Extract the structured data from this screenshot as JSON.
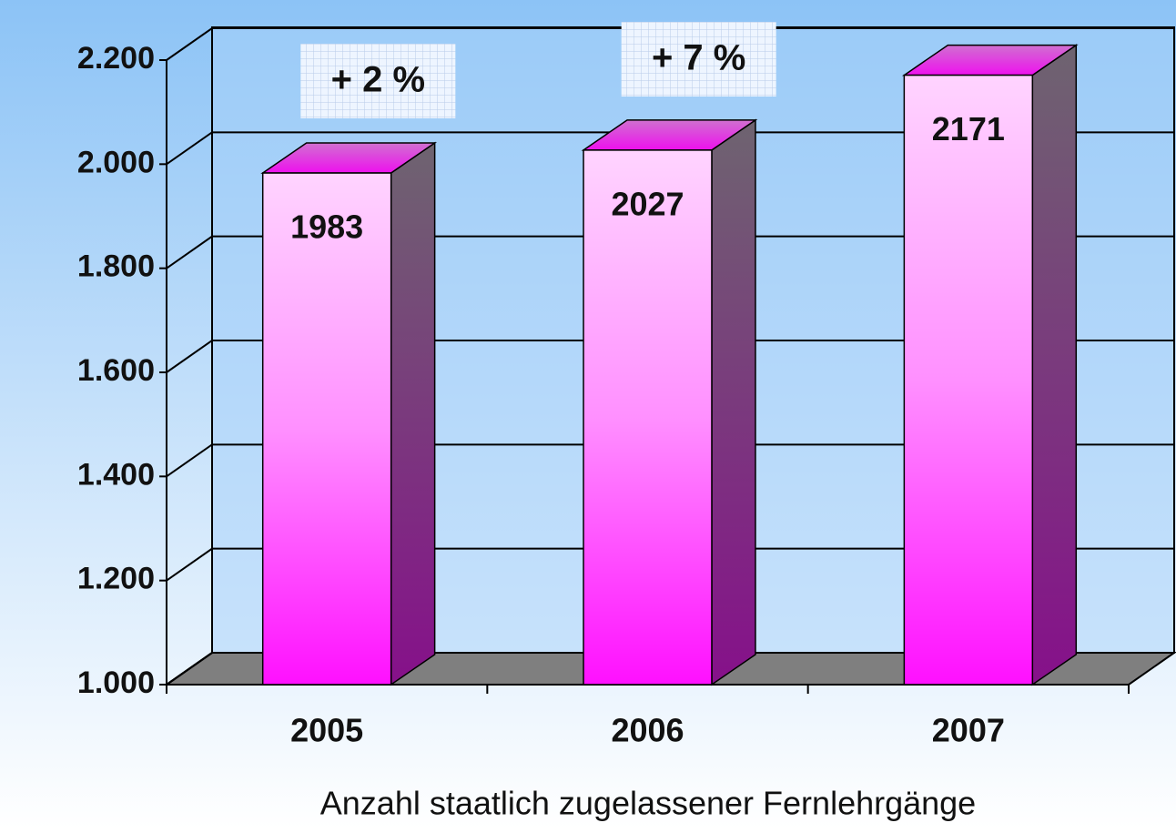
{
  "chart_data": {
    "type": "bar",
    "x_label": "Anzahl staatlich zugelassener Fernlehrgänge",
    "categories": [
      "2005",
      "2006",
      "2007"
    ],
    "values": [
      1983,
      2027,
      2171
    ],
    "color": "#ff20ff",
    "ylim": [
      1000,
      2200
    ],
    "yticks": [
      {
        "value": 1000,
        "label": "1.000"
      },
      {
        "value": 1200,
        "label": "1.200"
      },
      {
        "value": 1400,
        "label": "1.400"
      },
      {
        "value": 1600,
        "label": "1.600"
      },
      {
        "value": 1800,
        "label": "1.800"
      },
      {
        "value": 2000,
        "label": "2.000"
      },
      {
        "value": 2200,
        "label": "2.200"
      }
    ],
    "grid": true,
    "annotations": [
      "+ 2 %",
      "+ 7 %"
    ]
  }
}
